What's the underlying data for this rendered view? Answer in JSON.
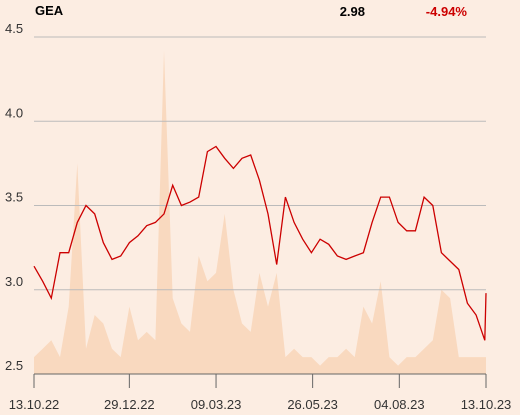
{
  "chart_data": {
    "type": "line",
    "title": "GEA",
    "price": 2.98,
    "change": {
      "value": -4.94,
      "label": "-4.94%"
    },
    "x": [
      "2022-10-13",
      "2022-10-20",
      "2022-10-27",
      "2022-11-03",
      "2022-11-10",
      "2022-11-17",
      "2022-11-24",
      "2022-12-01",
      "2022-12-08",
      "2022-12-15",
      "2022-12-22",
      "2022-12-29",
      "2023-01-05",
      "2023-01-12",
      "2023-01-19",
      "2023-01-26",
      "2023-02-02",
      "2023-02-09",
      "2023-02-16",
      "2023-02-23",
      "2023-03-02",
      "2023-03-09",
      "2023-03-16",
      "2023-03-23",
      "2023-03-30",
      "2023-04-06",
      "2023-04-13",
      "2023-04-20",
      "2023-04-27",
      "2023-05-04",
      "2023-05-11",
      "2023-05-18",
      "2023-05-25",
      "2023-06-01",
      "2023-06-08",
      "2023-06-15",
      "2023-06-22",
      "2023-06-29",
      "2023-07-06",
      "2023-07-13",
      "2023-07-20",
      "2023-07-27",
      "2023-08-03",
      "2023-08-10",
      "2023-08-17",
      "2023-08-24",
      "2023-08-31",
      "2023-09-07",
      "2023-09-14",
      "2023-09-21",
      "2023-09-28",
      "2023-10-05",
      "2023-10-12",
      "2023-10-13"
    ],
    "series": [
      {
        "color": "#f9d9bf",
        "kind": "area",
        "values": [
          2.6,
          2.65,
          2.7,
          2.6,
          2.9,
          3.75,
          2.65,
          2.85,
          2.8,
          2.65,
          2.6,
          2.9,
          2.7,
          2.75,
          2.7,
          4.42,
          2.95,
          2.8,
          2.75,
          3.2,
          3.05,
          3.1,
          3.45,
          3.0,
          2.8,
          2.75,
          3.1,
          2.9,
          3.1,
          2.6,
          2.65,
          2.6,
          2.6,
          2.55,
          2.6,
          2.6,
          2.65,
          2.6,
          2.9,
          2.8,
          3.05,
          2.6,
          2.55,
          2.6,
          2.6,
          2.65,
          2.7,
          3.0,
          2.95,
          2.6,
          2.6,
          2.6,
          2.6,
          2.6
        ]
      },
      {
        "color": "#cc0000",
        "kind": "line",
        "values": [
          3.14,
          3.05,
          2.95,
          3.22,
          3.22,
          3.4,
          3.5,
          3.45,
          3.28,
          3.18,
          3.2,
          3.28,
          3.32,
          3.38,
          3.4,
          3.45,
          3.62,
          3.5,
          3.52,
          3.55,
          3.82,
          3.85,
          3.78,
          3.72,
          3.78,
          3.8,
          3.65,
          3.45,
          3.15,
          3.55,
          3.4,
          3.3,
          3.22,
          3.3,
          3.27,
          3.2,
          3.18,
          3.2,
          3.22,
          3.4,
          3.55,
          3.55,
          3.4,
          3.35,
          3.35,
          3.55,
          3.5,
          3.22,
          3.17,
          3.12,
          2.92,
          2.85,
          2.7,
          2.98
        ]
      }
    ],
    "xlim": [
      "2022-10-13",
      "2023-10-13"
    ],
    "xticks": [
      {
        "value": "2022-10-13",
        "label": "13.10.22"
      },
      {
        "value": "2022-12-29",
        "label": "29.12.22"
      },
      {
        "value": "2023-03-09",
        "label": "09.03.23"
      },
      {
        "value": "2023-05-26",
        "label": "26.05.23"
      },
      {
        "value": "2023-08-04",
        "label": "04.08.23"
      },
      {
        "value": "2023-10-13",
        "label": "13.10.23"
      }
    ],
    "ylim": [
      2.5,
      4.5
    ],
    "yticks": [
      2.5,
      {
        "value": 3,
        "label": "3.0"
      },
      3.5,
      {
        "value": 4,
        "label": "4.0"
      },
      4.5
    ],
    "grid": true
  }
}
